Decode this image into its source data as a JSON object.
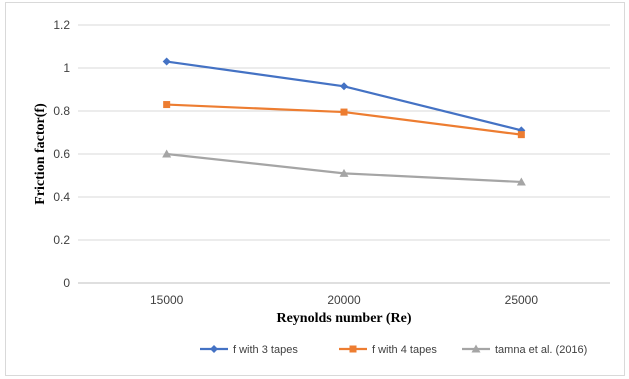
{
  "chart_data": {
    "type": "line",
    "title": "",
    "xlabel": "Reynolds number (Re)",
    "ylabel": "Friction factor(f)",
    "categories": [
      "15000",
      "20000",
      "25000"
    ],
    "ylim": [
      0,
      1.2
    ],
    "yticks": [
      "0",
      "0.2",
      "0.4",
      "0.6",
      "0.8",
      "1",
      "1.2"
    ],
    "grid": true,
    "legend_position": "bottom",
    "series": [
      {
        "name": "f with 3 tapes",
        "values": [
          1.03,
          0.915,
          0.71
        ],
        "color": "#4472c4",
        "marker": "diamond"
      },
      {
        "name": "f with 4 tapes",
        "values": [
          0.83,
          0.795,
          0.69
        ],
        "color": "#ed7d31",
        "marker": "square"
      },
      {
        "name": "tamna et al. (2016)",
        "values": [
          0.6,
          0.51,
          0.47
        ],
        "color": "#a5a5a5",
        "marker": "triangle"
      }
    ]
  }
}
